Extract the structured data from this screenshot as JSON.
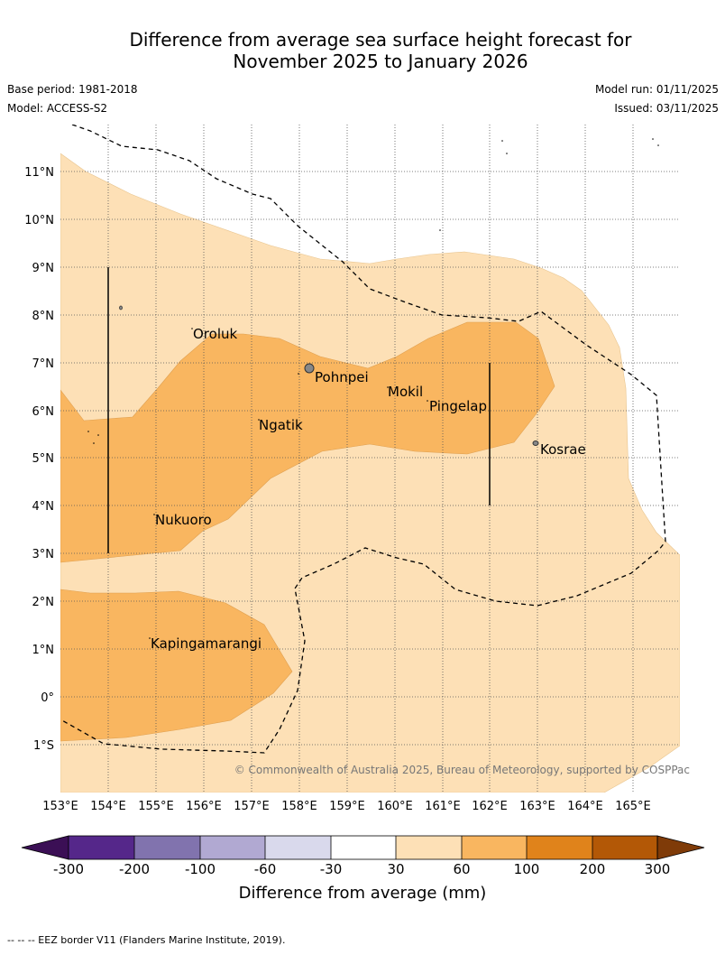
{
  "title_line1": "Difference from average sea surface height forecast for",
  "title_line2": "November 2025 to January 2026",
  "base_period": "Base period: 1981-2018",
  "model": "Model: ACCESS-S2",
  "model_run": "Model run: 01/11/2025",
  "issued": "Issued: 03/11/2025",
  "copyright": "© Commonwealth of Australia 2025, Bureau of Meteorology, supported by COSPPac",
  "lon_labels": [
    "153°E",
    "154°E",
    "155°E",
    "156°E",
    "157°E",
    "158°E",
    "159°E",
    "160°E",
    "161°E",
    "162°E",
    "163°E",
    "164°E",
    "165°E"
  ],
  "lat_labels": [
    "11°N",
    "10°N",
    "9°N",
    "8°N",
    "7°N",
    "6°N",
    "5°N",
    "4°N",
    "3°N",
    "2°N",
    "1°N",
    "0°",
    "1°S"
  ],
  "places": {
    "oroluk": "Oroluk",
    "pohnpei": "Pohnpei",
    "mokil": "Mokil",
    "pingelap": "Pingelap",
    "ngatik": "Ngatik",
    "kosrae": "Kosrae",
    "nukuoro": "Nukuoro",
    "kapingamarangi": "Kapingamarangi"
  },
  "colorbar": {
    "title": "Difference from average (mm)",
    "ticks": [
      "-300",
      "-200",
      "-100",
      "-60",
      "-30",
      "30",
      "60",
      "100",
      "200",
      "300"
    ],
    "colors": {
      "lt300": "#3b0f55",
      "m300_m200": "#55278a",
      "m200_m100": "#8173ae",
      "m100_m60": "#b1a9d2",
      "m60_m30": "#d9d9ec",
      "m30_30": "#ffffff",
      "p30_60": "#fde0b6",
      "p60_100": "#f9b660",
      "p100_200": "#e0831b",
      "p200_300": "#b35806",
      "gt300": "#7f3b08"
    }
  },
  "footer": "--  --  -- EEZ border V11 (Flanders Marine Institute, 2019)."
}
